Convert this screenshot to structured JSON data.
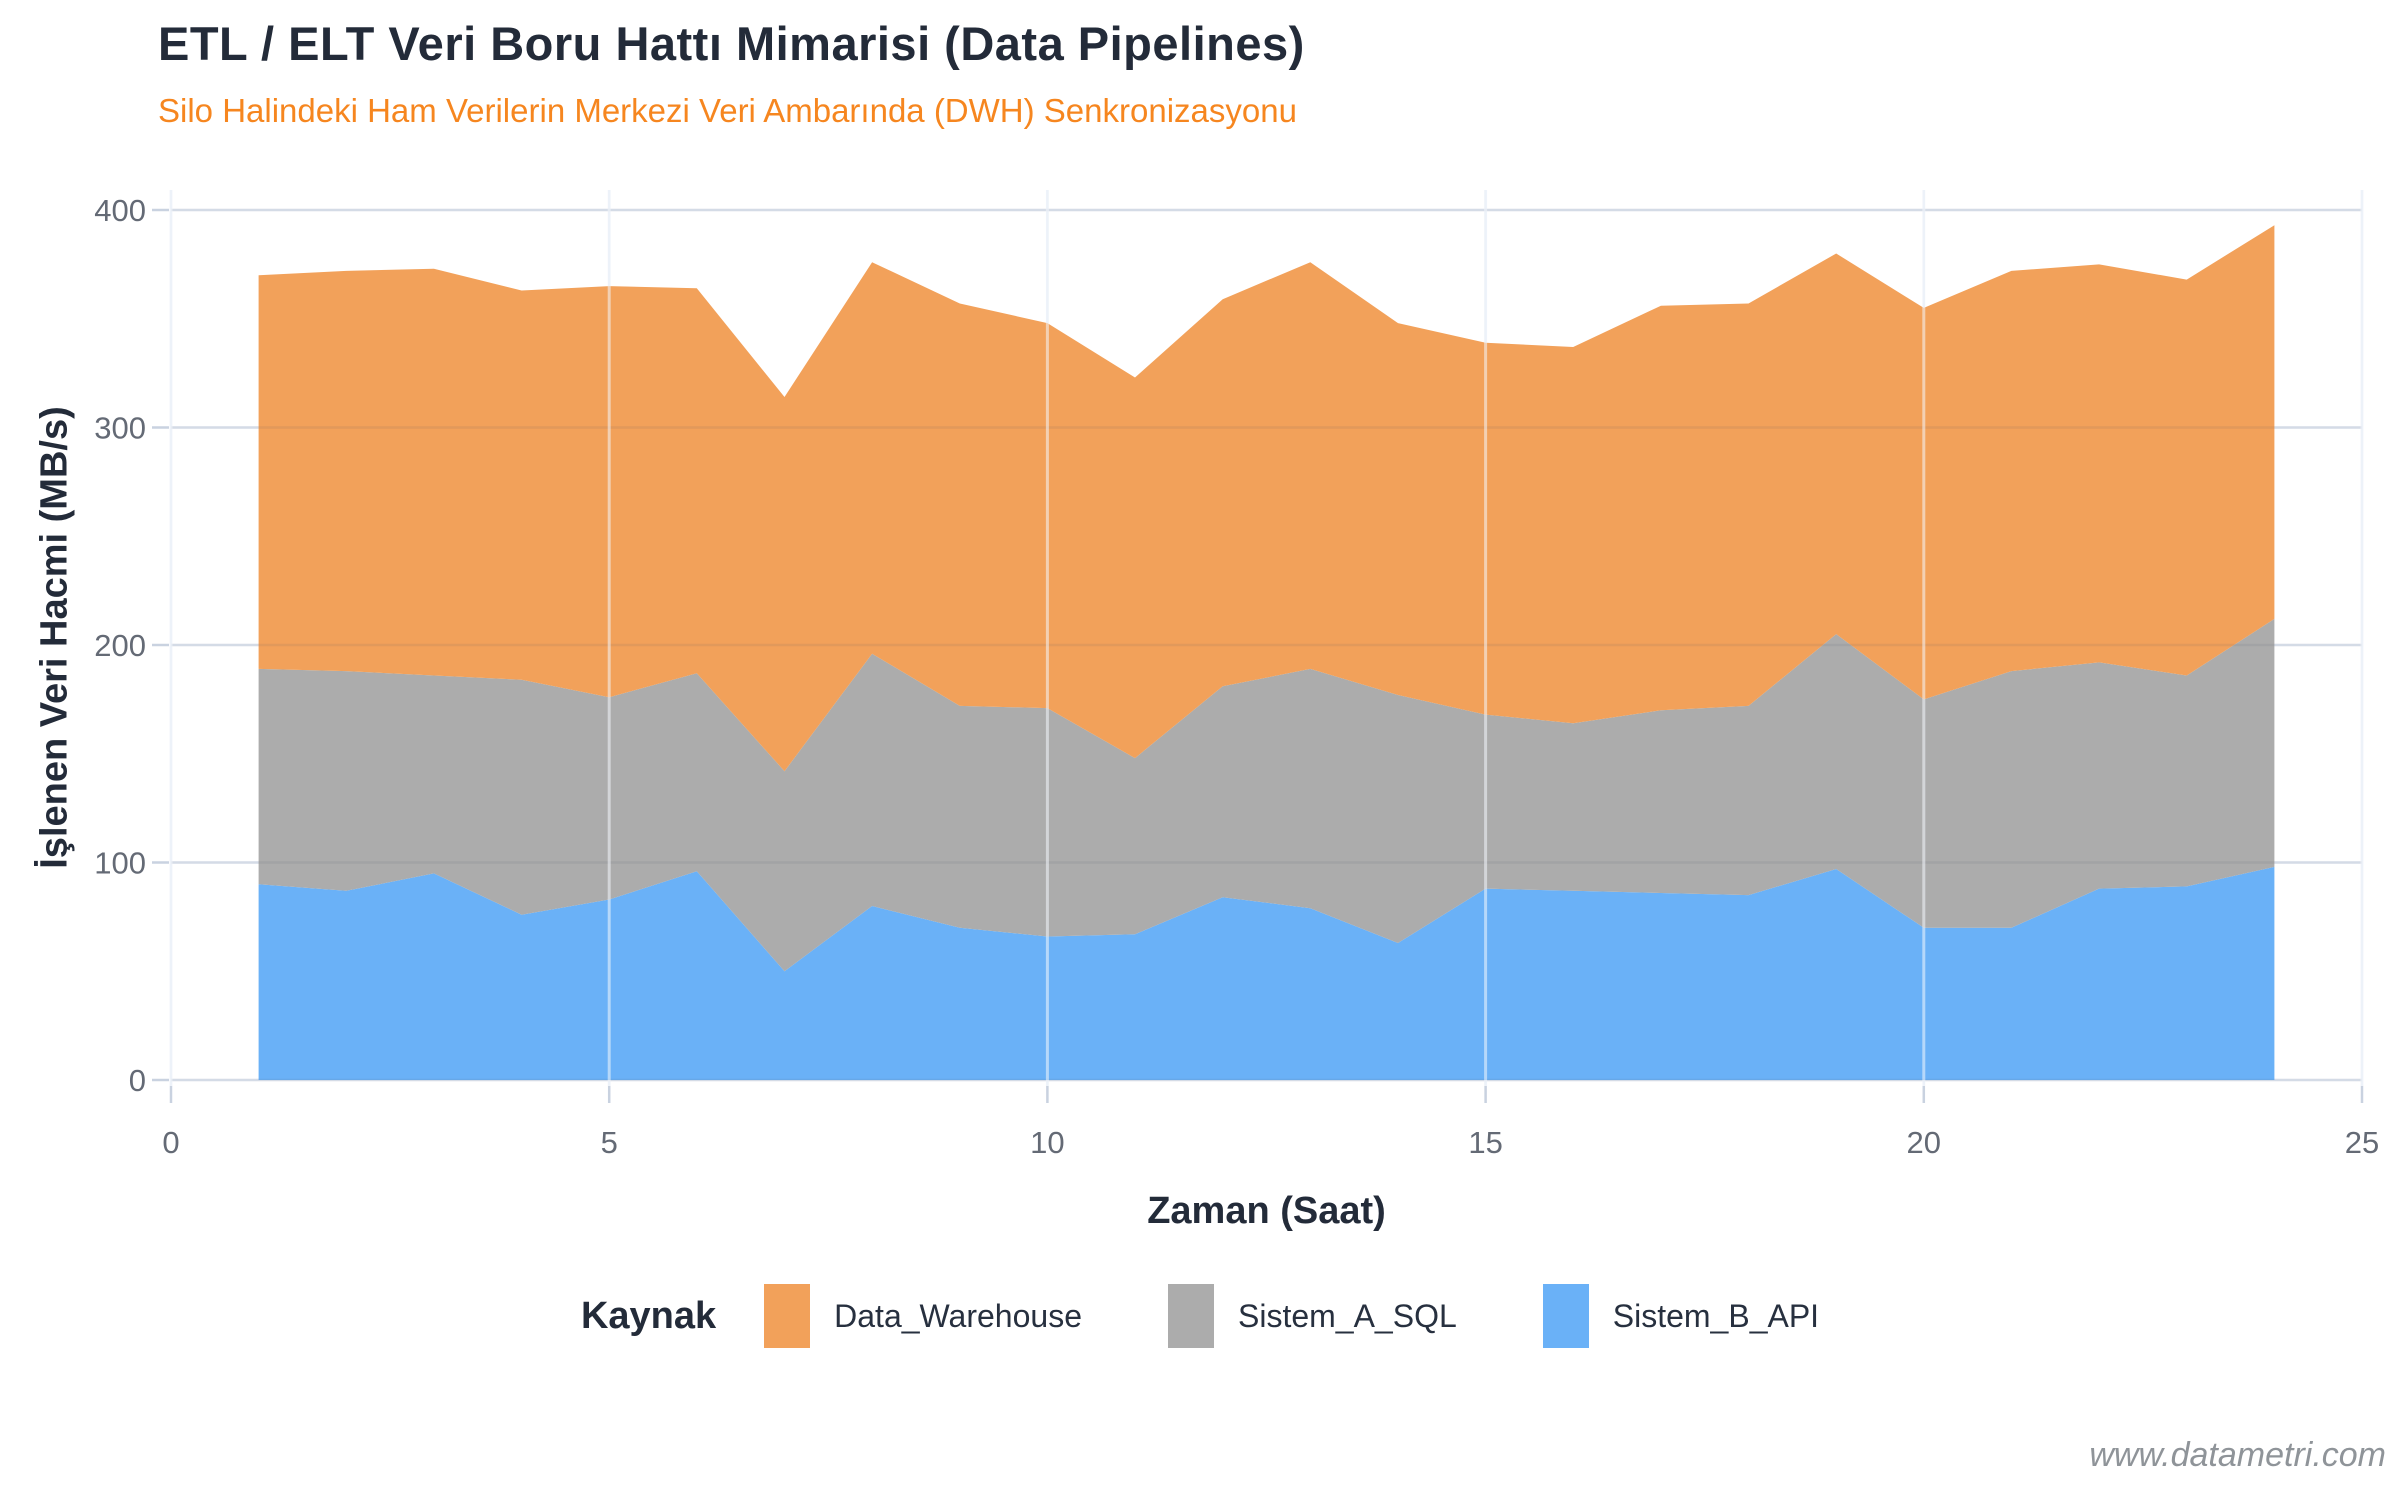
{
  "chart_data": {
    "type": "area",
    "stacked": true,
    "title": "ETL / ELT Veri Boru Hattı Mimarisi (Data Pipelines)",
    "subtitle": "Silo Halindeki Ham Verilerin Merkezi Veri Ambarında (DWH) Senkronizasyonu",
    "xlabel": "Zaman (Saat)",
    "ylabel": "İşlenen Veri Hacmi (MB/s)",
    "xlim": [
      0,
      25
    ],
    "ylim": [
      0,
      400
    ],
    "xticks": [
      0,
      5,
      10,
      15,
      20,
      25
    ],
    "yticks": [
      0,
      100,
      200,
      300,
      400
    ],
    "grid": true,
    "x": [
      1,
      2,
      3,
      4,
      5,
      6,
      7,
      8,
      9,
      10,
      11,
      12,
      13,
      14,
      15,
      16,
      17,
      18,
      19,
      20,
      21,
      22,
      23,
      24
    ],
    "series": [
      {
        "name": "Sistem_B_API",
        "stack_position": "bottom",
        "color": "#6AB1F7",
        "values": [
          90,
          87,
          95,
          76,
          83,
          96,
          50,
          80,
          70,
          66,
          67,
          84,
          79,
          63,
          88,
          87,
          86,
          85,
          97,
          70,
          70,
          88,
          89,
          98
        ]
      },
      {
        "name": "Sistem_A_SQL",
        "stack_position": "middle",
        "color": "#ACACAC",
        "values": [
          99,
          101,
          91,
          108,
          93,
          91,
          92,
          116,
          102,
          105,
          81,
          97,
          110,
          114,
          80,
          77,
          84,
          87,
          108,
          105,
          118,
          104,
          97,
          114
        ]
      },
      {
        "name": "Data_Warehouse",
        "stack_position": "top",
        "color": "#F2A15A",
        "values": [
          181,
          184,
          187,
          179,
          189,
          177,
          172,
          180,
          185,
          177,
          175,
          178,
          187,
          171,
          171,
          173,
          186,
          185,
          175,
          180,
          184,
          183,
          182,
          181
        ]
      }
    ],
    "stacked_totals": [
      370,
      372,
      373,
      363,
      365,
      364,
      314,
      376,
      357,
      348,
      323,
      359,
      376,
      348,
      339,
      337,
      356,
      357,
      380,
      355,
      372,
      375,
      368,
      393
    ],
    "legend": {
      "title": "Kaynak",
      "position": "bottom",
      "items": [
        {
          "label": "Data_Warehouse",
          "color": "#F2A15A"
        },
        {
          "label": "Sistem_A_SQL",
          "color": "#ACACAC"
        },
        {
          "label": "Sistem_B_API",
          "color": "#6AB1F7"
        }
      ]
    },
    "watermark": "www.datametri.com",
    "colors": {
      "title": "#232B39",
      "subtitle": "#F6861F",
      "tick_label": "#646A75",
      "gridline": "#E4EAF4",
      "tick_mark": "#C9D2E0",
      "watermark": "#8F9499"
    }
  }
}
